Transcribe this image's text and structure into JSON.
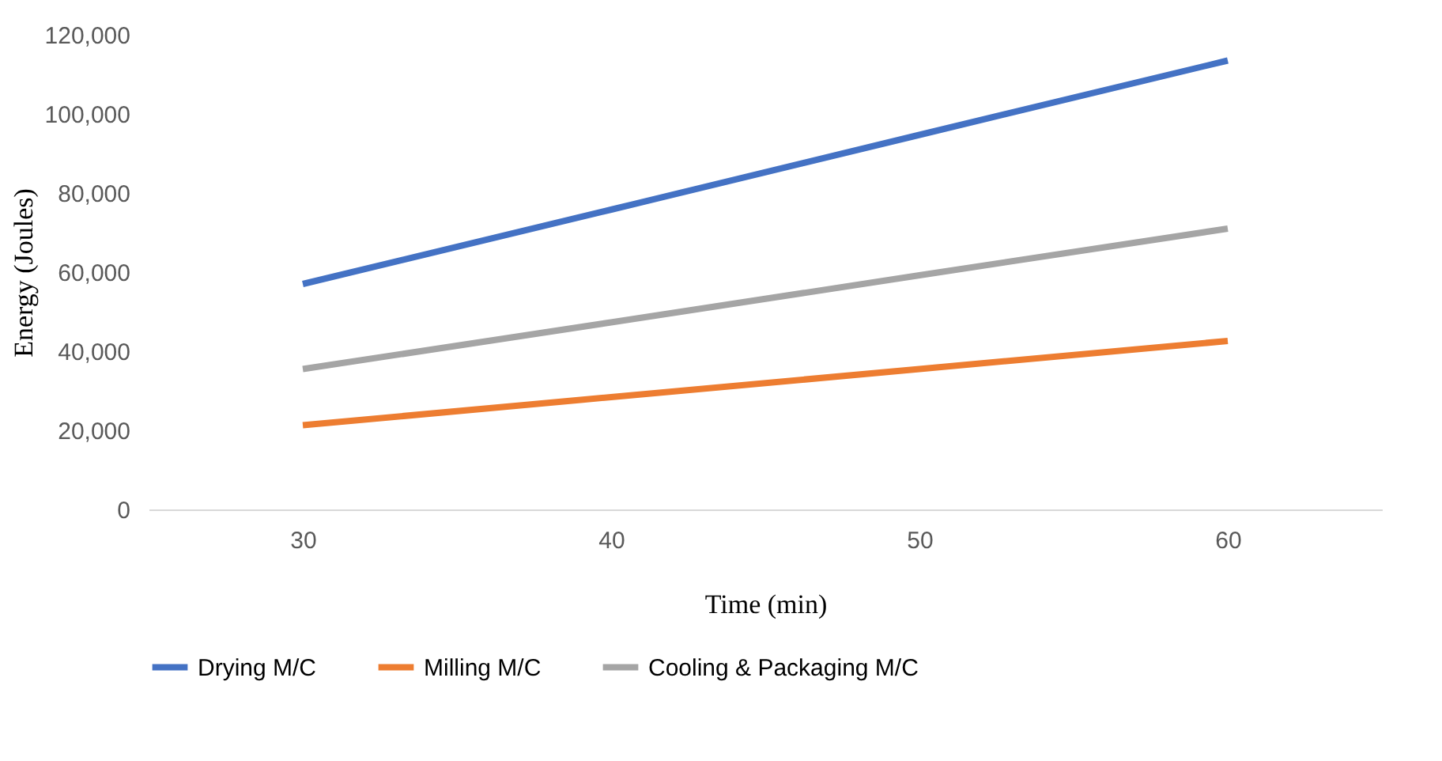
{
  "chart_data": {
    "type": "line",
    "xlabel": "Time (min)",
    "ylabel": "Energy (Joules)",
    "categories": [
      "30",
      "40",
      "50",
      "60"
    ],
    "series": [
      {
        "name": "Drying M/C",
        "color": "#4472c4",
        "values": [
          57000,
          75800,
          94700,
          113500
        ]
      },
      {
        "name": "Milling M/C",
        "color": "#ed7d31",
        "values": [
          21300,
          28400,
          35500,
          42600
        ]
      },
      {
        "name": "Cooling & Packaging M/C",
        "color": "#a5a5a5",
        "values": [
          35500,
          47300,
          59200,
          71000
        ]
      }
    ],
    "ylim": [
      0,
      120000
    ],
    "yticks": [
      {
        "value": 0,
        "label": "0"
      },
      {
        "value": 20000,
        "label": "20,000"
      },
      {
        "value": 40000,
        "label": "40,000"
      },
      {
        "value": 60000,
        "label": "60,000"
      },
      {
        "value": 80000,
        "label": "80,000"
      },
      {
        "value": 100000,
        "label": "100,000"
      },
      {
        "value": 120000,
        "label": "120,000"
      }
    ],
    "grid": false,
    "legend": "bottom",
    "marker": "none",
    "line_style": "solid"
  }
}
